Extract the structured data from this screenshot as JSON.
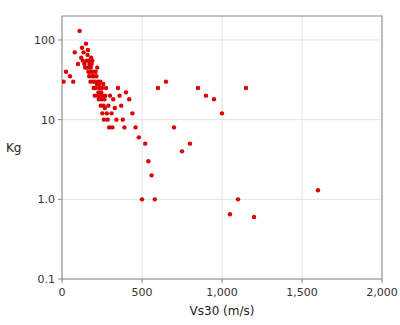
{
  "chart_data": {
    "type": "scatter",
    "xlabel": "Vs30 (m/s)",
    "ylabel": "Kg",
    "log": "y",
    "grid": true,
    "color": "#dd0000",
    "xlim": [
      0,
      2000
    ],
    "ylim": [
      0.1,
      200
    ],
    "xticks": [
      0,
      500,
      {
        "value": 1000,
        "label": "1,000"
      },
      {
        "value": 1500,
        "label": "1,500"
      },
      {
        "value": 2000,
        "label": "2,000"
      }
    ],
    "yticks": [
      0.1,
      {
        "value": 1.0,
        "label": "1.0"
      },
      10,
      100
    ],
    "x": [
      10,
      25,
      50,
      70,
      80,
      100,
      110,
      120,
      125,
      130,
      135,
      140,
      145,
      150,
      155,
      158,
      160,
      162,
      165,
      168,
      170,
      172,
      175,
      178,
      180,
      182,
      185,
      188,
      190,
      192,
      195,
      198,
      200,
      202,
      205,
      208,
      210,
      212,
      215,
      218,
      220,
      222,
      225,
      228,
      230,
      232,
      235,
      238,
      240,
      242,
      245,
      248,
      250,
      252,
      255,
      258,
      260,
      262,
      265,
      268,
      270,
      275,
      280,
      285,
      290,
      295,
      300,
      310,
      315,
      320,
      330,
      340,
      350,
      360,
      370,
      380,
      390,
      400,
      420,
      440,
      460,
      480,
      500,
      520,
      540,
      560,
      580,
      600,
      650,
      700,
      750,
      800,
      850,
      900,
      950,
      1000,
      1050,
      1100,
      1150,
      1200,
      1600
    ],
    "values": [
      30,
      40,
      35,
      30,
      70,
      50,
      130,
      60,
      80,
      55,
      70,
      50,
      45,
      90,
      55,
      45,
      65,
      75,
      40,
      55,
      35,
      50,
      40,
      30,
      45,
      60,
      50,
      35,
      55,
      40,
      30,
      25,
      35,
      25,
      20,
      30,
      40,
      25,
      35,
      28,
      45,
      20,
      30,
      22,
      18,
      28,
      25,
      20,
      30,
      15,
      22,
      18,
      25,
      12,
      20,
      28,
      15,
      10,
      18,
      14,
      20,
      25,
      12,
      10,
      15,
      8,
      20,
      12,
      8,
      18,
      14,
      10,
      25,
      20,
      15,
      10,
      8,
      22,
      18,
      12,
      8,
      6,
      1.0,
      5,
      3,
      2,
      1.0,
      25,
      30,
      8,
      4,
      5,
      25,
      20,
      18,
      12,
      0.65,
      1.0,
      25,
      0.6,
      1.3
    ]
  }
}
